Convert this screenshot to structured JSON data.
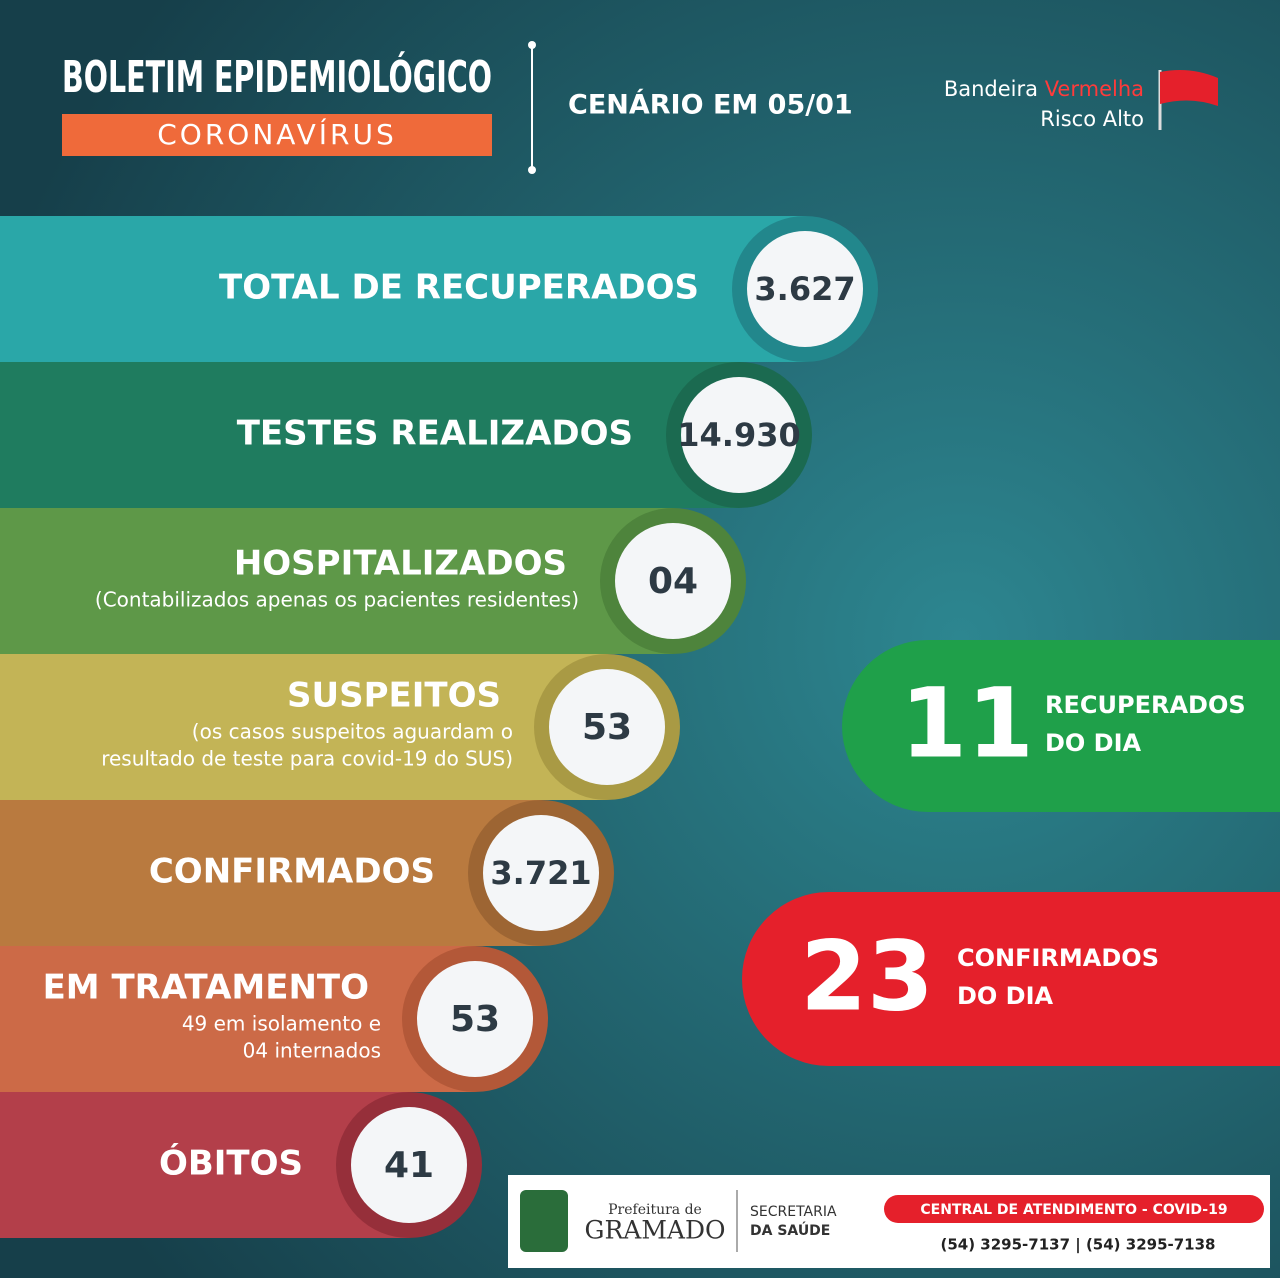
{
  "header": {
    "title": "BOLETIM EPIDEMIOLÓGICO",
    "subtitle": "CORONAVÍRUS",
    "scenario": "CENÁRIO EM 05/01",
    "flag": {
      "word1": "Bandeira",
      "word2": "Vermelha",
      "line2": "Risco Alto"
    }
  },
  "indicators": [
    {
      "label": "TOTAL DE RECUPERADOS",
      "value": "3.627"
    },
    {
      "label": "TESTES REALIZADOS",
      "value": "14.930"
    },
    {
      "label": "HOSPITALIZADOS",
      "note_lines": [
        "(Contabilizados apenas os pacientes residentes)"
      ],
      "value": "04"
    },
    {
      "label": "SUSPEITOS",
      "note_lines": [
        "(os casos suspeitos aguardam o",
        "resultado de teste para covid-19 do SUS)"
      ],
      "value": "53"
    },
    {
      "label": "CONFIRMADOS",
      "value": "3.721"
    },
    {
      "label": "EM TRATAMENTO",
      "note_lines": [
        "49 em isolamento e",
        "04 internados"
      ],
      "value": "53"
    },
    {
      "label": "ÓBITOS",
      "value": "41"
    }
  ],
  "daily": [
    {
      "value": "11",
      "label_lines": [
        "RECUPERADOS",
        "DO DIA"
      ]
    },
    {
      "value": "23",
      "label_lines": [
        "CONFIRMADOS",
        "DO DIA"
      ]
    }
  ],
  "footer": {
    "prefeitura": "Prefeitura de",
    "city": "GRAMADO",
    "secretaria_lines": [
      "SECRETARIA",
      "DA SAÚDE"
    ],
    "central": "CENTRAL DE ATENDIMENTO - COVID-19",
    "phones": "(54) 3295-7137 | (54) 3295-7138"
  }
}
